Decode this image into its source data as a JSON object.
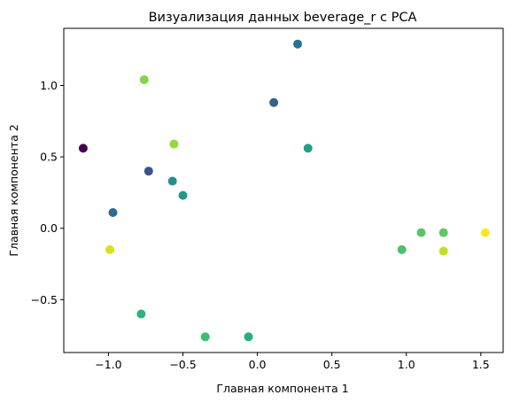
{
  "chart_data": {
    "type": "scatter",
    "title": "Визуализация данных beverage_r с PCA",
    "xlabel": "Главная компонента 1",
    "ylabel": "Главная компонента 2",
    "xlim": [
      -1.3,
      1.65
    ],
    "ylim": [
      -0.87,
      1.4
    ],
    "xticks": [
      -1.0,
      -0.5,
      0.0,
      0.5,
      1.0,
      1.5
    ],
    "xtick_labels": [
      "−1.0",
      "−0.5",
      "0.0",
      "0.5",
      "1.0",
      "1.5"
    ],
    "yticks": [
      -0.5,
      0.0,
      0.5,
      1.0
    ],
    "ytick_labels": [
      "−0.5",
      "0.0",
      "0.5",
      "1.0"
    ],
    "grid": false,
    "colormap": "viridis",
    "points": [
      {
        "x": -1.17,
        "y": 0.56,
        "color": "#440154"
      },
      {
        "x": -0.73,
        "y": 0.4,
        "color": "#3b528b"
      },
      {
        "x": -0.97,
        "y": 0.11,
        "color": "#31688e"
      },
      {
        "x": 0.27,
        "y": 1.29,
        "color": "#2c728e"
      },
      {
        "x": 0.11,
        "y": 0.88,
        "color": "#33638d"
      },
      {
        "x": -0.57,
        "y": 0.33,
        "color": "#21918c"
      },
      {
        "x": -0.5,
        "y": 0.23,
        "color": "#1f9a8a"
      },
      {
        "x": 0.34,
        "y": 0.56,
        "color": "#1fa088"
      },
      {
        "x": -0.06,
        "y": -0.76,
        "color": "#27ad81"
      },
      {
        "x": -0.78,
        "y": -0.6,
        "color": "#2db27d"
      },
      {
        "x": -0.35,
        "y": -0.76,
        "color": "#3dbc74"
      },
      {
        "x": 0.97,
        "y": -0.15,
        "color": "#4ac16d"
      },
      {
        "x": 1.1,
        "y": -0.03,
        "color": "#56c667"
      },
      {
        "x": 1.25,
        "y": -0.03,
        "color": "#5ec962"
      },
      {
        "x": -0.76,
        "y": 1.04,
        "color": "#84d44b"
      },
      {
        "x": -0.56,
        "y": 0.59,
        "color": "#95d840"
      },
      {
        "x": 1.25,
        "y": -0.16,
        "color": "#c2df23"
      },
      {
        "x": -0.99,
        "y": -0.15,
        "color": "#d8e219"
      },
      {
        "x": 1.53,
        "y": -0.03,
        "color": "#fde725"
      }
    ]
  }
}
